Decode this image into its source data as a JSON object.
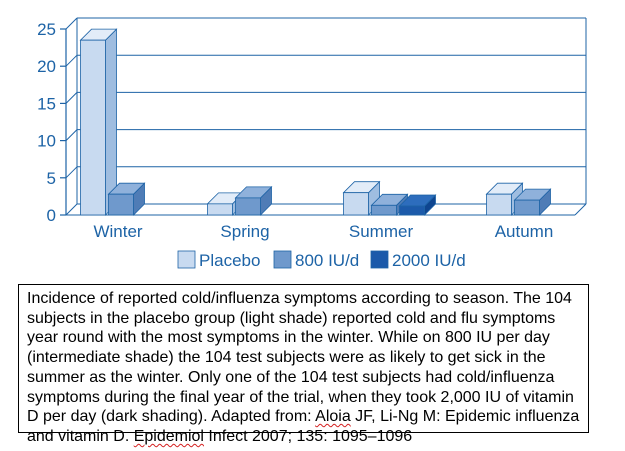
{
  "chart_data": {
    "type": "bar",
    "categories": [
      "Winter",
      "Spring",
      "Summer",
      "Autumn"
    ],
    "series": [
      {
        "name": "Placebo",
        "values": [
          23.5,
          1.5,
          3,
          2.8
        ]
      },
      {
        "name": "800 IU/d",
        "values": [
          2.8,
          2.3,
          1.3,
          2
        ]
      },
      {
        "name": "2000 IU/d",
        "values": [
          0,
          0,
          1.2,
          0
        ]
      }
    ],
    "ylim": [
      0,
      25
    ],
    "yticks": [
      0,
      5,
      10,
      15,
      20,
      25
    ],
    "grid": true,
    "legend_position": "bottom",
    "colors": {
      "placebo_front": "#c8daf0",
      "placebo_top": "#e2ecf8",
      "placebo_side": "#9fbde0",
      "iu800_front": "#6f99cc",
      "iu800_top": "#8fb1db",
      "iu800_side": "#4f7cb6",
      "iu2000_front": "#1c5aaa",
      "iu2000_top": "#2d6dbd",
      "iu2000_side": "#0f4590",
      "axis": "#1d63a6"
    }
  },
  "caption": {
    "text_before": "Incidence of reported cold/influenza symptoms according to season. The 104 subjects in the placebo group (light shade) reported cold and flu symptoms year round with the most symptoms in the winter. While on 800 IU per day (intermediate shade) the 104 test subjects were as likely to get sick in the summer as the winter. Only one of the 104 test subjects had cold/influenza symptoms during the final year of the trial, when they took 2,000 IU of vitamin D per day (dark shading). Adapted from: ",
    "author1": "Aloia",
    "text_mid1": " JF, Li-Ng M: Epidemic influenza and vitamin D. ",
    "journal": "Epidemiol",
    "text_end": " Infect 2007; 135: 1095–1096"
  }
}
